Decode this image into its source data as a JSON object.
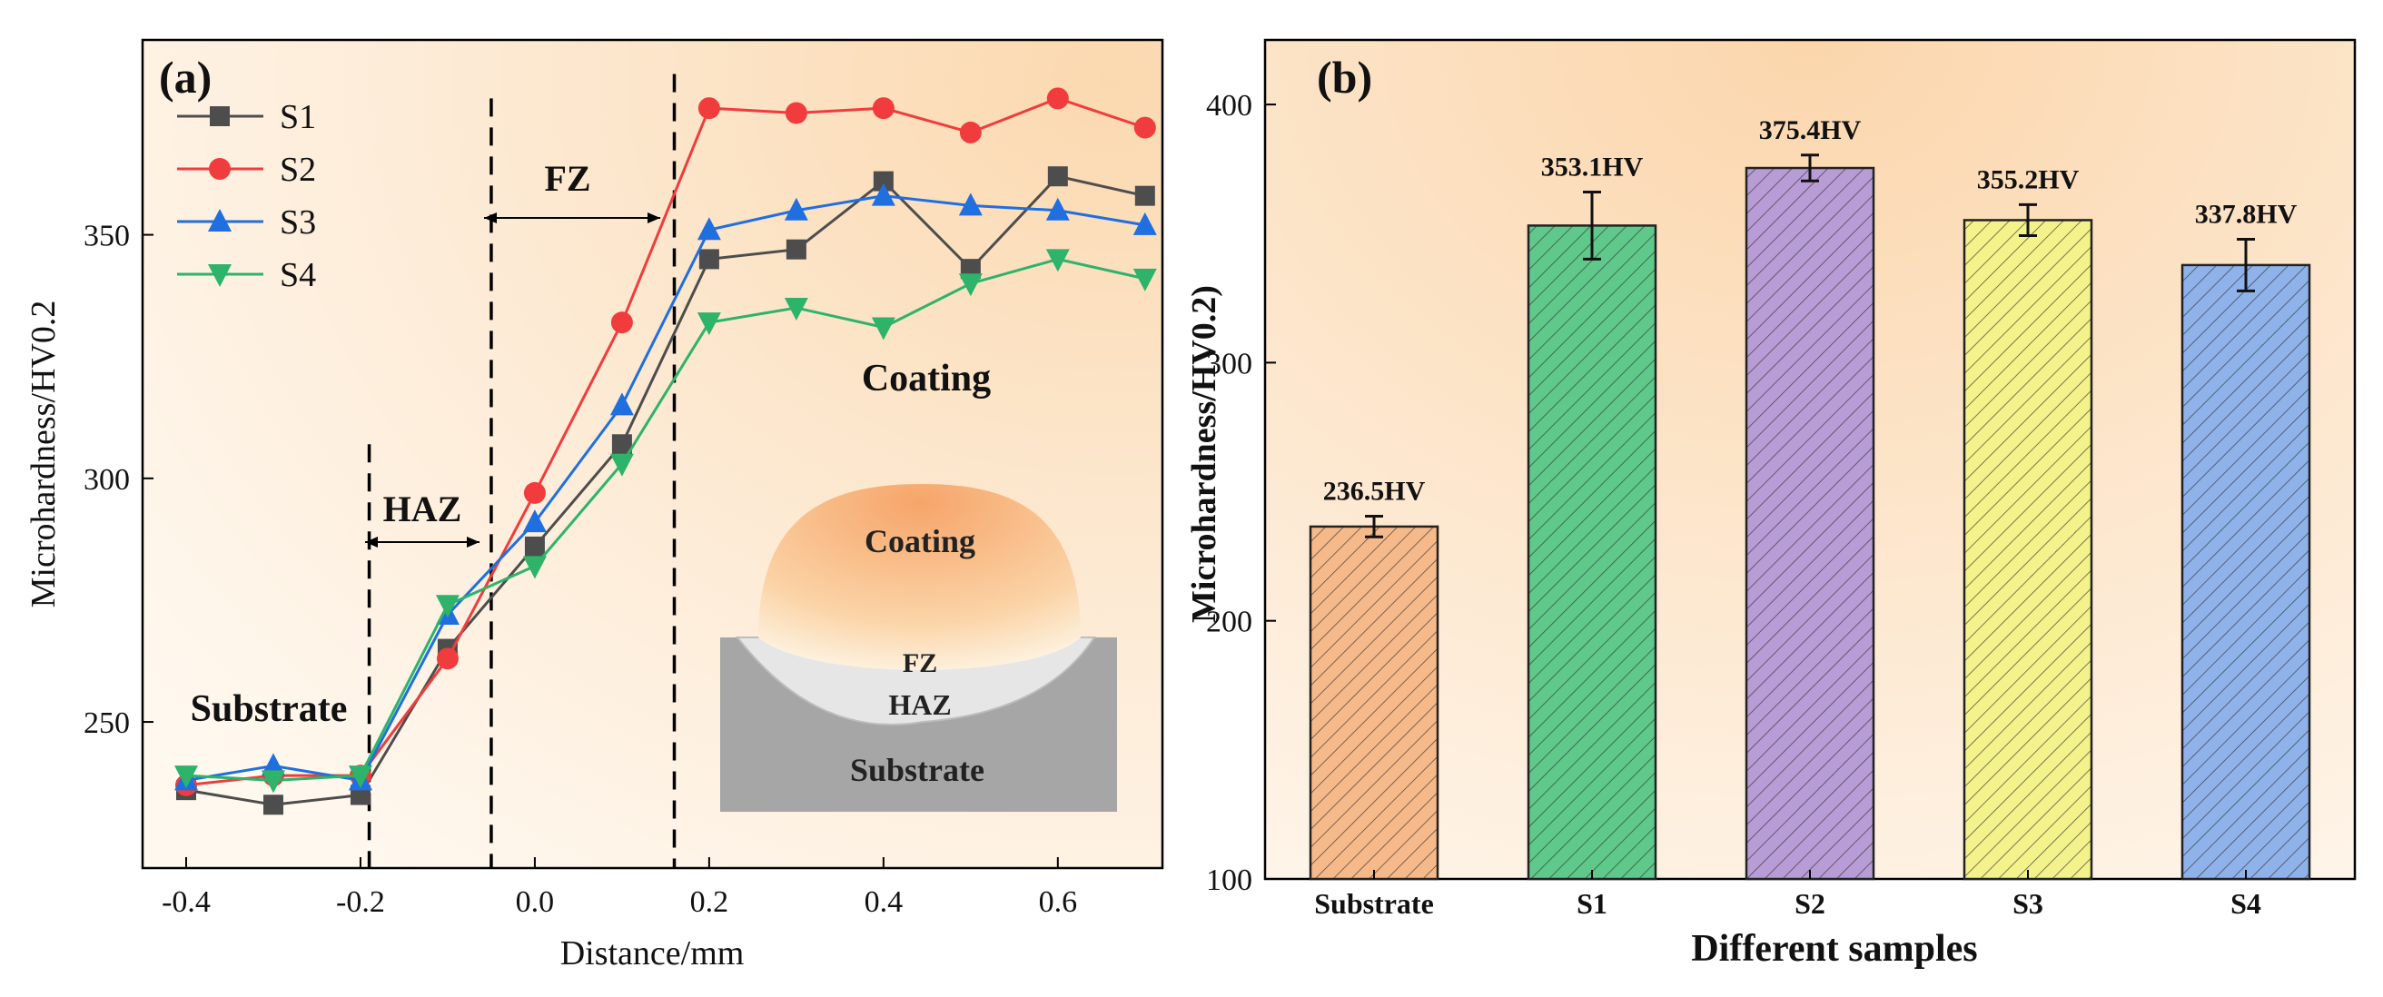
{
  "chart_data": [
    {
      "panel_label": "(a)",
      "type": "line",
      "xlabel": "Distance/mm",
      "ylabel": "Microhardness/HV0.2",
      "xlim": [
        -0.45,
        0.72
      ],
      "ylim": [
        220,
        390
      ],
      "xticks": [
        -0.4,
        -0.2,
        0.0,
        0.2,
        0.4,
        0.6
      ],
      "xtick_labels": [
        "-0.4",
        "-0.2",
        "0.0",
        "0.2",
        "0.4",
        "0.6"
      ],
      "yticks": [
        250,
        300,
        350
      ],
      "ytick_labels": [
        "250",
        "300",
        "350"
      ],
      "x": [
        -0.4,
        -0.3,
        -0.2,
        -0.1,
        0.0,
        0.1,
        0.2,
        0.3,
        0.4,
        0.5,
        0.6,
        0.7
      ],
      "series": [
        {
          "name": "S1",
          "color": "#4d4d4d",
          "marker": "square",
          "values": [
            236,
            233,
            235,
            265,
            286,
            307,
            345,
            347,
            361,
            343,
            362,
            358
          ]
        },
        {
          "name": "S2",
          "color": "#f03c3c",
          "marker": "circle",
          "values": [
            237,
            239,
            239,
            263,
            297,
            332,
            376,
            375,
            376,
            371,
            378,
            372
          ]
        },
        {
          "name": "S3",
          "color": "#1f6fe0",
          "marker": "triangle-up",
          "values": [
            238,
            241,
            238,
            272,
            291,
            315,
            351,
            355,
            358,
            356,
            355,
            352
          ]
        },
        {
          "name": "S4",
          "color": "#2db36a",
          "marker": "triangle-down",
          "values": [
            239,
            238,
            239,
            274,
            282,
            303,
            332,
            335,
            331,
            340,
            345,
            341
          ]
        }
      ],
      "zone_boundaries_x": [
        -0.19,
        -0.05,
        0.16
      ],
      "zone_labels": {
        "haz": "HAZ",
        "fz": "FZ",
        "coating": "Coating",
        "substrate": "Substrate"
      },
      "inset_labels": {
        "coating": "Coating",
        "fz": "FZ",
        "haz": "HAZ",
        "substrate": "Substrate"
      }
    },
    {
      "panel_label": "(b)",
      "type": "bar",
      "xlabel": "Different samples",
      "ylabel": "Microhardness/HV0.2)",
      "ylim": [
        100,
        425
      ],
      "yticks": [
        100,
        200,
        300,
        400
      ],
      "ytick_labels": [
        "100",
        "200",
        "300",
        "400"
      ],
      "categories": [
        "Substrate",
        "S1",
        "S2",
        "S3",
        "S4"
      ],
      "values": [
        236.5,
        353.1,
        375.4,
        355.2,
        337.8
      ],
      "errors": [
        4,
        13,
        5,
        6,
        10
      ],
      "value_labels": [
        "236.5HV",
        "353.1HV",
        "375.4HV",
        "355.2HV",
        "337.8HV"
      ],
      "colors": [
        "#f6b98a",
        "#5ec98a",
        "#b89cd6",
        "#f4f28a",
        "#8fb2ea"
      ]
    }
  ]
}
